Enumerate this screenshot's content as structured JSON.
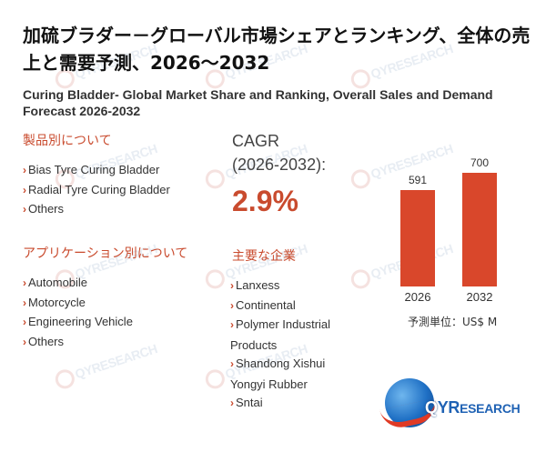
{
  "watermark_text": "QYRESEARCH",
  "title_ja": "加硫ブラダー－グローバル市場シェアとランキング、全体の売上と需要予測、2026～2032",
  "title_en": "Curing Bladder- Global Market Share and Ranking, Overall Sales and Demand Forecast 2026-2032",
  "product_section": {
    "title": "製品別について",
    "items": [
      "Bias Tyre Curing Bladder",
      "Radial Tyre Curing Bladder",
      "Others"
    ]
  },
  "application_section": {
    "title": "アプリケーション別について",
    "items": [
      "Automobile",
      "Motorcycle",
      "Engineering Vehicle",
      "Others"
    ]
  },
  "cagr": {
    "label_line1": "CAGR",
    "label_line2": "(2026-2032):",
    "value": "2.9%"
  },
  "players_section": {
    "title": "主要な企業",
    "items": [
      "Lanxess",
      "Continental",
      "Polymer Industrial Products",
      "Shandong Xishui Yongyi Rubber",
      "Sntai"
    ]
  },
  "chart_data": {
    "type": "bar",
    "categories": [
      "2026",
      "2032"
    ],
    "values": [
      591,
      700
    ],
    "value_labels": [
      "591",
      "700"
    ],
    "ylim": [
      0,
      700
    ],
    "color": "#d9472b"
  },
  "unit_label": "予測単位：US$ M",
  "logo": {
    "q": "Q",
    "yr": "YR",
    "rest": "ESEARCH"
  },
  "colors": {
    "accent": "#c94b2e",
    "bar": "#d9472b",
    "logo_blue": "#1f62b4"
  }
}
